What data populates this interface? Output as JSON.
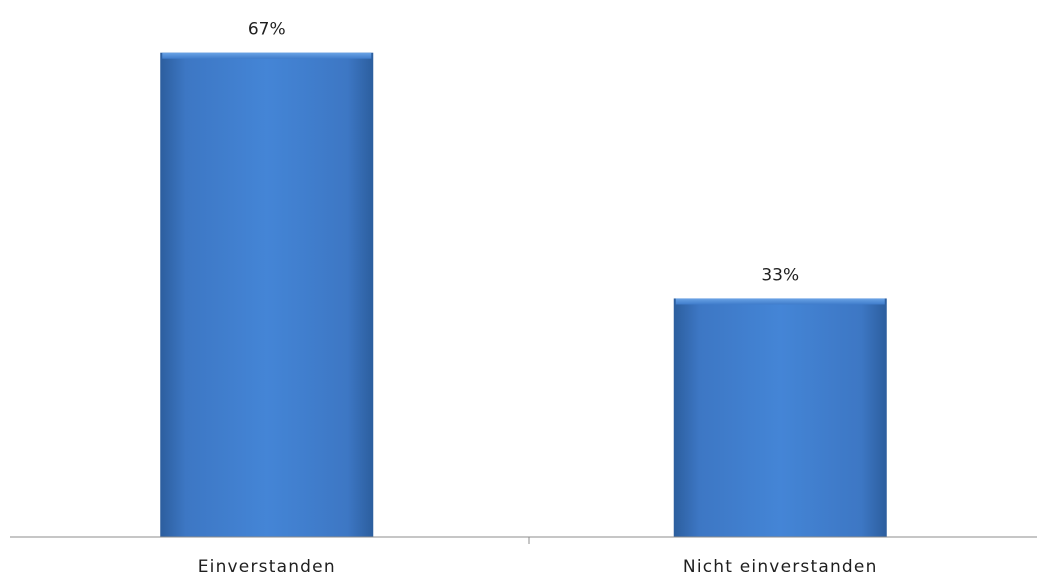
{
  "chart_data": {
    "type": "bar",
    "categories": [
      "Einverstanden",
      "Nicht einverstanden"
    ],
    "values": [
      67,
      33
    ],
    "value_labels": [
      "67%",
      "33%"
    ],
    "ylim": [
      0,
      70
    ],
    "grid": false,
    "bar_color": "#3b78c9"
  }
}
